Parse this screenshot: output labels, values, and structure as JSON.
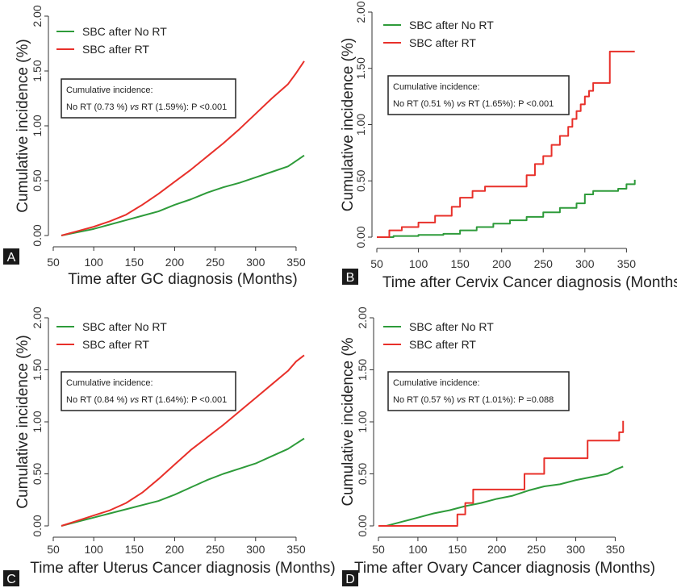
{
  "chart_data": [
    {
      "panel_letter": "A",
      "type": "line",
      "ylabel": "Cumulative incidence (%)",
      "xlabel": "Time after GC diagnosis (Months)",
      "xlim": [
        50,
        370
      ],
      "ylim": [
        0,
        2.0
      ],
      "xticks": [
        "50",
        "100",
        "150",
        "200",
        "250",
        "300",
        "350"
      ],
      "yticks": [
        "0.00",
        "0.50",
        "1.00",
        "1.50",
        "2.00"
      ],
      "grid": false,
      "legend_position": "top-left",
      "series": [
        {
          "name": "SBC after No RT",
          "color": "#2e9b3a",
          "step": false,
          "x": [
            60,
            80,
            100,
            120,
            140,
            160,
            180,
            200,
            220,
            240,
            260,
            280,
            300,
            320,
            340,
            350,
            360
          ],
          "y": [
            0.0,
            0.03,
            0.06,
            0.1,
            0.14,
            0.18,
            0.22,
            0.28,
            0.33,
            0.39,
            0.44,
            0.48,
            0.53,
            0.58,
            0.63,
            0.68,
            0.73
          ]
        },
        {
          "name": "SBC after RT",
          "color": "#e8302a",
          "step": false,
          "x": [
            60,
            80,
            100,
            120,
            140,
            160,
            180,
            200,
            220,
            240,
            260,
            280,
            300,
            320,
            340,
            350,
            360
          ],
          "y": [
            0.0,
            0.04,
            0.08,
            0.13,
            0.19,
            0.28,
            0.38,
            0.49,
            0.6,
            0.72,
            0.84,
            0.97,
            1.11,
            1.25,
            1.38,
            1.48,
            1.59
          ]
        }
      ],
      "annotation": {
        "line1": "Cumulative incidence:",
        "line2_pre": "No RT (0.73 %) ",
        "line2_vs": "vs",
        "line2_post": " RT (1.59%): P <0.001"
      }
    },
    {
      "panel_letter": "B",
      "type": "line",
      "ylabel": "Cumulative incidence (%)",
      "xlabel": "Time after Cervix Cancer diagnosis (Months)",
      "xlim": [
        50,
        370
      ],
      "ylim": [
        0,
        2.0
      ],
      "xticks": [
        "50",
        "100",
        "150",
        "200",
        "250",
        "300",
        "350"
      ],
      "yticks": [
        "0.00",
        "0.50",
        "1.00",
        "1.50",
        "2.00"
      ],
      "grid": false,
      "legend_position": "top-left",
      "series": [
        {
          "name": "SBC after No RT",
          "color": "#2e9b3a",
          "step": true,
          "x": [
            50,
            70,
            100,
            130,
            150,
            170,
            190,
            210,
            230,
            250,
            270,
            290,
            300,
            310,
            340,
            350,
            360
          ],
          "y": [
            0.0,
            0.01,
            0.02,
            0.03,
            0.06,
            0.09,
            0.12,
            0.15,
            0.18,
            0.22,
            0.26,
            0.3,
            0.38,
            0.41,
            0.43,
            0.47,
            0.51
          ]
        },
        {
          "name": "SBC after RT",
          "color": "#e8302a",
          "step": true,
          "x": [
            50,
            65,
            80,
            100,
            120,
            140,
            150,
            165,
            180,
            220,
            230,
            240,
            250,
            260,
            270,
            280,
            285,
            290,
            295,
            300,
            305,
            310,
            325,
            330,
            360
          ],
          "y": [
            0.0,
            0.06,
            0.09,
            0.13,
            0.19,
            0.27,
            0.35,
            0.41,
            0.45,
            0.45,
            0.55,
            0.65,
            0.72,
            0.82,
            0.9,
            0.98,
            1.05,
            1.12,
            1.18,
            1.25,
            1.3,
            1.37,
            1.37,
            1.65,
            1.65
          ]
        }
      ],
      "annotation": {
        "line1": "Cumulative incidence:",
        "line2_pre": "No RT (0.51 %) ",
        "line2_vs": "vs",
        "line2_post": " RT (1.65%): P <0.001"
      }
    },
    {
      "panel_letter": "C",
      "type": "line",
      "ylabel": "Cumulative incidence (%)",
      "xlabel": "Time after Uterus Cancer diagnosis (Months)",
      "xlim": [
        50,
        370
      ],
      "ylim": [
        0,
        2.0
      ],
      "xticks": [
        "50",
        "100",
        "150",
        "200",
        "250",
        "300",
        "350"
      ],
      "yticks": [
        "0.00",
        "0.50",
        "1.00",
        "1.50",
        "2.00"
      ],
      "grid": false,
      "legend_position": "top-left",
      "series": [
        {
          "name": "SBC after No RT",
          "color": "#2e9b3a",
          "step": false,
          "x": [
            60,
            80,
            100,
            120,
            140,
            160,
            180,
            200,
            220,
            240,
            260,
            280,
            300,
            320,
            340,
            350,
            360
          ],
          "y": [
            0.0,
            0.04,
            0.08,
            0.12,
            0.16,
            0.2,
            0.24,
            0.3,
            0.37,
            0.44,
            0.5,
            0.55,
            0.6,
            0.67,
            0.74,
            0.79,
            0.84
          ]
        },
        {
          "name": "SBC after RT",
          "color": "#e8302a",
          "step": false,
          "x": [
            60,
            80,
            100,
            120,
            140,
            160,
            180,
            200,
            220,
            240,
            260,
            280,
            300,
            320,
            340,
            350,
            360
          ],
          "y": [
            0.0,
            0.05,
            0.1,
            0.15,
            0.22,
            0.32,
            0.45,
            0.59,
            0.73,
            0.85,
            0.97,
            1.1,
            1.23,
            1.36,
            1.49,
            1.58,
            1.64
          ]
        }
      ],
      "annotation": {
        "line1": "Cumulative incidence:",
        "line2_pre": "No RT (0.84 %) ",
        "line2_vs": "vs",
        "line2_post": " RT (1.64%): P <0.001"
      }
    },
    {
      "panel_letter": "D",
      "type": "line",
      "ylabel": "Cumulative incidence (%",
      "xlabel": "Time after Ovary Cancer diagnosis (Months)",
      "xlim": [
        50,
        370
      ],
      "ylim": [
        0,
        2.0
      ],
      "xticks": [
        "50",
        "100",
        "150",
        "200",
        "250",
        "300",
        "350"
      ],
      "yticks": [
        "0.00",
        "0.50",
        "1.00",
        "1.50",
        "2.00"
      ],
      "grid": false,
      "legend_position": "top-left",
      "series": [
        {
          "name": "SBC after No RT",
          "color": "#2e9b3a",
          "step": false,
          "x": [
            60,
            80,
            100,
            120,
            140,
            160,
            180,
            200,
            220,
            240,
            260,
            280,
            300,
            320,
            340,
            350,
            360
          ],
          "y": [
            0.0,
            0.04,
            0.08,
            0.12,
            0.15,
            0.19,
            0.22,
            0.26,
            0.29,
            0.34,
            0.38,
            0.4,
            0.44,
            0.47,
            0.5,
            0.54,
            0.57
          ]
        },
        {
          "name": "SBC after RT",
          "color": "#e8302a",
          "step": true,
          "x": [
            50,
            140,
            150,
            160,
            170,
            230,
            235,
            260,
            310,
            315,
            355,
            360
          ],
          "y": [
            0.0,
            0.0,
            0.11,
            0.22,
            0.35,
            0.35,
            0.5,
            0.65,
            0.65,
            0.82,
            0.9,
            1.01
          ]
        }
      ],
      "annotation": {
        "line1": "Cumulative incidence:",
        "line2_pre": "No RT (0.57 %) ",
        "line2_vs": "vs",
        "line2_post": " RT (1.01%): P =0.088"
      }
    }
  ]
}
